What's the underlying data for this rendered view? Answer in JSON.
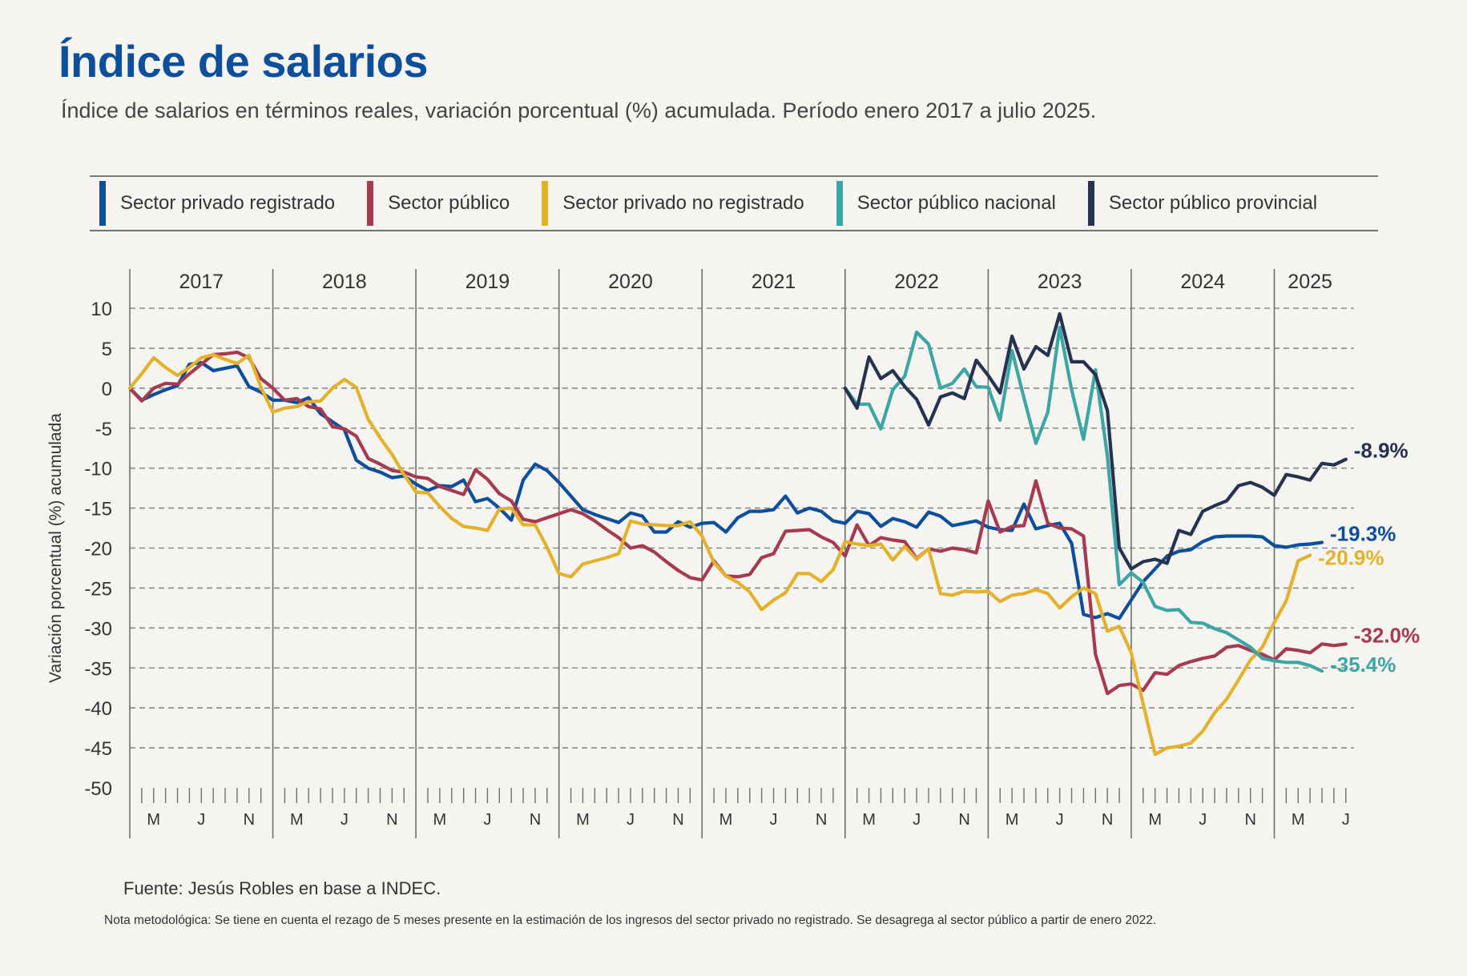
{
  "title": "Índice de salarios",
  "subtitle": "Índice de salarios en términos reales, variación porcentual (%) acumulada. Período enero 2017 a julio 2025.",
  "source": "Fuente: Jesús Robles en base a INDEC.",
  "note": "Nota metodológica: Se tiene en cuenta el rezago de 5 meses presente en la estimación de los ingresos del sector privado no registrado. Se desagrega al sector público a partir de enero 2022.",
  "chart_data": {
    "type": "line",
    "title": "Índice de salarios",
    "xlabel": "",
    "ylabel": "Variación porcentual (%) acumulada",
    "ylim": [
      -50,
      10
    ],
    "yticks": [
      10,
      5,
      0,
      -5,
      -10,
      -15,
      -20,
      -25,
      -30,
      -35,
      -40,
      -45,
      -50
    ],
    "grid": true,
    "legend_position": "top",
    "x_start": "2017-01",
    "x_end": "2025-07",
    "years": [
      "2017",
      "2018",
      "2019",
      "2020",
      "2021",
      "2022",
      "2023",
      "2024",
      "2025"
    ],
    "month_labels": [
      "M",
      "J",
      "N",
      "M",
      "J",
      "N",
      "M",
      "J",
      "N",
      "M",
      "J",
      "N",
      "M",
      "J",
      "N",
      "M",
      "J",
      "N",
      "M",
      "J",
      "N",
      "M",
      "J",
      "N",
      "M",
      "J"
    ],
    "series": [
      {
        "name": "Sector privado registrado",
        "color": "#0d4f9a",
        "start": "2017-01",
        "end_label": "-19.3%",
        "values": [
          0,
          -1.5,
          -0.8,
          -0.2,
          0.3,
          3,
          3.2,
          2.2,
          2.5,
          2.8,
          0.2,
          -0.5,
          -1.5,
          -1.5,
          -1.8,
          -1.2,
          -3.2,
          -4.2,
          -5.2,
          -9,
          -10,
          -10.5,
          -11.2,
          -11,
          -12,
          -12.8,
          -12.2,
          -12.3,
          -11.5,
          -14.2,
          -13.8,
          -15,
          -16.5,
          -11.5,
          -9.5,
          -10.3,
          -11.8,
          -13.5,
          -15.2,
          -15.8,
          -16.3,
          -16.8,
          -15.6,
          -16,
          -18,
          -18,
          -16.7,
          -17.4,
          -16.9,
          -16.8,
          -18,
          -16.2,
          -15.4,
          -15.4,
          -15.2,
          -13.5,
          -15.6,
          -15,
          -15.4,
          -16.6,
          -16.9,
          -15.4,
          -15.7,
          -17.3,
          -16.3,
          -16.7,
          -17.4,
          -15.5,
          -16,
          -17.2,
          -16.9,
          -16.6,
          -17.4,
          -17.7,
          -17.8,
          -14.5,
          -17.6,
          -17.2,
          -16.9,
          -19.4,
          -28.3,
          -28.7,
          -28.2,
          -28.8,
          -26.5,
          -24.2,
          -22.6,
          -21,
          -20.4,
          -20.2,
          -19.2,
          -18.6,
          -18.5,
          -18.5,
          -18.5,
          -18.6,
          -19.7,
          -19.9,
          -19.6,
          -19.5,
          -19.3
        ]
      },
      {
        "name": "Sector público",
        "color": "#a63a4f",
        "start": "2017-01",
        "end_label": "-32.0%",
        "values": [
          0,
          -1.6,
          0,
          0.6,
          0.5,
          1.8,
          3,
          4.2,
          4.3,
          4.5,
          3.8,
          1.2,
          0,
          -1.5,
          -1.3,
          -2.3,
          -2.6,
          -4.8,
          -5.1,
          -6,
          -8.8,
          -9.5,
          -10.3,
          -10.5,
          -11.1,
          -11.3,
          -12.3,
          -12.8,
          -13.3,
          -10.2,
          -11.4,
          -13.2,
          -14.1,
          -16.4,
          -16.7,
          -16.2,
          -15.7,
          -15.2,
          -15.7,
          -16.6,
          -17.7,
          -18.7,
          -20,
          -19.7,
          -20.5,
          -21.7,
          -22.8,
          -23.7,
          -24,
          -21.6,
          -23.5,
          -23.6,
          -23.3,
          -21.2,
          -20.7,
          -17.9,
          -17.8,
          -17.7,
          -18.6,
          -19.3,
          -21,
          -17.1,
          -19.7,
          -18.7,
          -19,
          -19.2,
          -21.3,
          -20.1,
          -20.4,
          -20,
          -20.2,
          -20.6,
          -14.1,
          -18,
          -17.3,
          -17.2,
          -11.6,
          -16.9,
          -17.5,
          -17.6,
          -18.5,
          -33.3,
          -38.2,
          -37.2,
          -37,
          -37.8,
          -35.6,
          -35.8,
          -34.7,
          -34.2,
          -33.8,
          -33.5,
          -32.4,
          -32.2,
          -32.8,
          -33.3,
          -34,
          -32.6,
          -32.8,
          -33.1,
          -32,
          -32.2,
          -32
        ]
      },
      {
        "name": "Sector privado no registrado",
        "color": "#e3b12a",
        "start": "2017-01",
        "end_label": "-20.9%",
        "values": [
          0,
          1.8,
          3.8,
          2.6,
          1.6,
          2.6,
          3.8,
          4.2,
          3.6,
          3.1,
          4.1,
          0.1,
          -3,
          -2.5,
          -2.3,
          -1.7,
          -1.6,
          0,
          1.1,
          0.1,
          -3.9,
          -6.2,
          -8.3,
          -10.8,
          -13,
          -13.1,
          -14.8,
          -16.3,
          -17.3,
          -17.5,
          -17.8,
          -15.1,
          -15,
          -17.1,
          -17.1,
          -19.9,
          -23.2,
          -23.6,
          -22,
          -21.6,
          -21.2,
          -20.7,
          -16.6,
          -17,
          -17.1,
          -17.2,
          -17.2,
          -16.7,
          -18.5,
          -21.8,
          -23.5,
          -24.3,
          -25.5,
          -27.7,
          -26.5,
          -25.6,
          -23.2,
          -23.2,
          -24.2,
          -22.7,
          -19.2,
          -19.5,
          -19.7,
          -19.5,
          -21.5,
          -19.8,
          -21.4,
          -20.1,
          -25.7,
          -25.9,
          -25.4,
          -25.5,
          -25.4,
          -26.7,
          -25.9,
          -25.7,
          -25.2,
          -25.7,
          -27.5,
          -26.1,
          -25,
          -25.7,
          -30.4,
          -29.8,
          -33.1,
          -39.5,
          -45.8,
          -45,
          -44.8,
          -44.4,
          -42.9,
          -40.6,
          -38.9,
          -36.5,
          -34,
          -32.4,
          -29.3,
          -26.6,
          -21.6,
          -20.9
        ]
      },
      {
        "name": "Sector público nacional",
        "color": "#3ba6a4",
        "start": "2022-01",
        "end_label": "-35.4%",
        "values": [
          0,
          -2,
          -2,
          -5.1,
          -0.2,
          1.5,
          7,
          5.5,
          0,
          0.6,
          2.4,
          0.2,
          0.1,
          -4,
          4.7,
          -1.2,
          -6.9,
          -3,
          7.6,
          -0.2,
          -6.4,
          2.3,
          -8.5,
          -24.6,
          -23.1,
          -24.3,
          -27.3,
          -27.8,
          -27.7,
          -29.3,
          -29.4,
          -30.1,
          -30.6,
          -31.5,
          -32.4,
          -33.8,
          -34.1,
          -34.3,
          -34.3,
          -34.7,
          -35.4
        ]
      },
      {
        "name": "Sector público provincial",
        "color": "#263350",
        "start": "2022-01",
        "end_label": "-8.9%",
        "values": [
          0,
          -2.5,
          3.9,
          1.2,
          2.2,
          0.2,
          -1.4,
          -4.6,
          -1.1,
          -0.6,
          -1.3,
          3.5,
          1.6,
          -0.6,
          6.5,
          2.4,
          5.2,
          4.1,
          9.3,
          3.3,
          3.3,
          1.7,
          -2.8,
          -20,
          -22.6,
          -21.7,
          -21.4,
          -21.9,
          -17.8,
          -18.3,
          -15.4,
          -14.7,
          -14.1,
          -12.2,
          -11.8,
          -12.4,
          -13.4,
          -10.8,
          -11.1,
          -11.5,
          -9.4,
          -9.6,
          -8.9
        ]
      }
    ]
  }
}
